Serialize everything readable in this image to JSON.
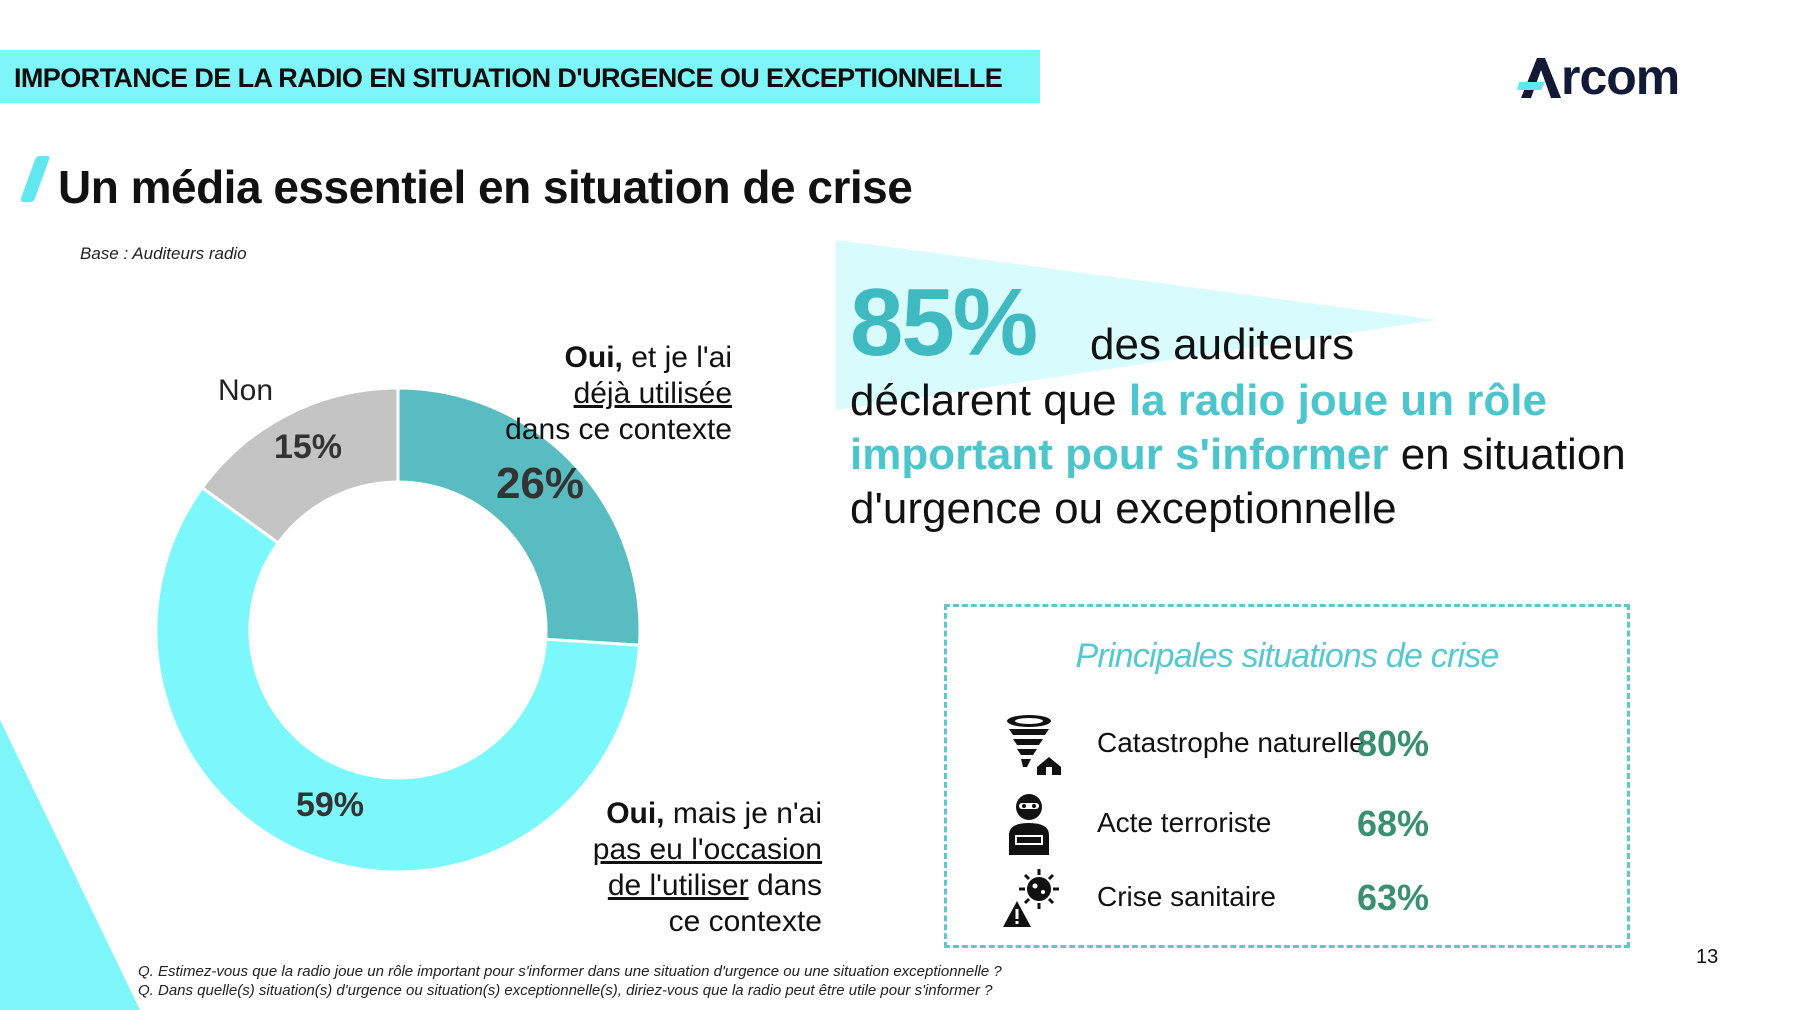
{
  "header": {
    "banner": "IMPORTANCE DE LA RADIO EN SITUATION D'URGENCE OU EXCEPTIONNELLE",
    "logo": "Arcom"
  },
  "title": "Un média essentiel en situation de crise",
  "base_note": "Base : Auditeurs radio",
  "chart_data": {
    "type": "pie",
    "variant": "donut",
    "categories": [
      "Oui, et je l'ai déjà utilisée dans ce contexte",
      "Oui, mais je n'ai pas eu l'occasion de l'utiliser dans ce contexte",
      "Non"
    ],
    "values": [
      26,
      59,
      15
    ],
    "value_labels": [
      "26%",
      "59%",
      "15%"
    ],
    "colors": [
      "#58bcc0",
      "#7cf7fb",
      "#c4c4c4"
    ],
    "labels": {
      "non": "Non",
      "used": {
        "bold": "Oui,",
        "rest": " et je l'ai",
        "underlined": "déjà utilisée",
        "tail": "dans ce contexte"
      },
      "notused": {
        "bold": "Oui,",
        "rest": " mais je n'ai",
        "underlined_1": "pas eu l'occasion",
        "underlined_2": "de l'utiliser",
        "tail_1": " dans",
        "tail_2": "ce contexte"
      }
    }
  },
  "highlight": {
    "value": "85%",
    "line1": "des auditeurs",
    "pre": "déclarent que ",
    "emphasis": "la radio joue un rôle important pour s'informer",
    "post": " en situation d'urgence ou exceptionnelle"
  },
  "crisis": {
    "title": "Principales situations de crise",
    "items": [
      {
        "label": "Catastrophe naturelle",
        "value": "80%",
        "icon": "tornado-house-icon"
      },
      {
        "label": "Acte terroriste",
        "value": "68%",
        "icon": "masked-terrorist-icon"
      },
      {
        "label": "Crise sanitaire",
        "value": "63%",
        "icon": "virus-warning-icon"
      }
    ]
  },
  "footnote": {
    "q1": "Q. Estimez-vous que la radio joue un rôle important pour s'informer dans une situation d'urgence ou une situation exceptionnelle ?",
    "q2": "Q. Dans quelle(s) situation(s) d'urgence ou situation(s) exceptionnelle(s), diriez-vous que la radio peut être utile pour s'informer ?"
  },
  "page_number": "13"
}
